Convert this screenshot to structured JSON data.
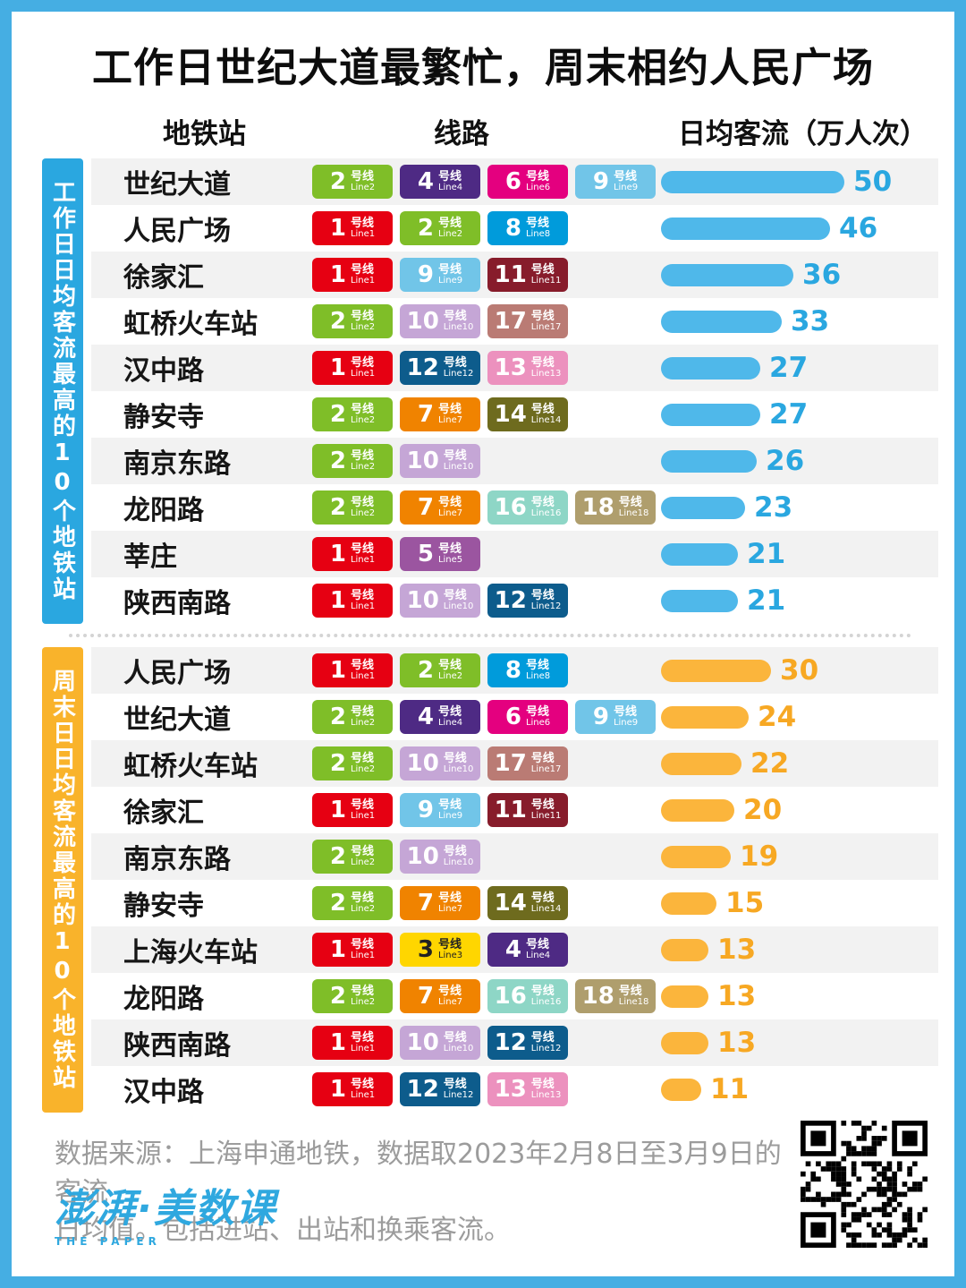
{
  "title": "工作日世纪大道最繁忙，周末相约人民广场",
  "columns": {
    "station": "地铁站",
    "lines": "线路",
    "flow": "日均客流（万人次）"
  },
  "badge": {
    "suffix_cn": "号线",
    "prefix_en": "Line"
  },
  "line_colors": {
    "1": {
      "bg": "#E60012",
      "fg": "#ffffff"
    },
    "2": {
      "bg": "#7FBE28",
      "fg": "#ffffff"
    },
    "3": {
      "bg": "#FFD600",
      "fg": "#222222"
    },
    "4": {
      "bg": "#4E2A84",
      "fg": "#ffffff"
    },
    "5": {
      "bg": "#9B55A0",
      "fg": "#ffffff"
    },
    "6": {
      "bg": "#E4007F",
      "fg": "#ffffff"
    },
    "7": {
      "bg": "#F08300",
      "fg": "#ffffff"
    },
    "8": {
      "bg": "#009BDB",
      "fg": "#ffffff"
    },
    "9": {
      "bg": "#71C5E8",
      "fg": "#ffffff"
    },
    "10": {
      "bg": "#C5A6D6",
      "fg": "#ffffff"
    },
    "11": {
      "bg": "#871C2B",
      "fg": "#ffffff"
    },
    "12": {
      "bg": "#0D5C8C",
      "fg": "#ffffff"
    },
    "13": {
      "bg": "#EC91BE",
      "fg": "#ffffff"
    },
    "14": {
      "bg": "#6E6B1E",
      "fg": "#ffffff"
    },
    "16": {
      "bg": "#8ED6C6",
      "fg": "#ffffff"
    },
    "17": {
      "bg": "#BA7B74",
      "fg": "#ffffff"
    },
    "18": {
      "bg": "#AF9E6D",
      "fg": "#ffffff"
    }
  },
  "chart_data": {
    "type": "bar",
    "orientation": "horizontal",
    "title": "工作日世纪大道最繁忙，周末相约人民广场",
    "unit_label": "日均客流（万人次）",
    "xlim": [
      0,
      50
    ],
    "grid": false,
    "groups": [
      {
        "id": "weekday",
        "label": "工作日日均客流最高的10个地铁站",
        "accent": "#2AA7E0",
        "bar_color": "#4FB8EA",
        "value_color": "#2AA7E0",
        "rows": [
          {
            "station": "世纪大道",
            "lines": [
              2,
              4,
              6,
              9
            ],
            "value": 50
          },
          {
            "station": "人民广场",
            "lines": [
              1,
              2,
              8
            ],
            "value": 46
          },
          {
            "station": "徐家汇",
            "lines": [
              1,
              9,
              11
            ],
            "value": 36
          },
          {
            "station": "虹桥火车站",
            "lines": [
              2,
              10,
              17
            ],
            "value": 33
          },
          {
            "station": "汉中路",
            "lines": [
              1,
              12,
              13
            ],
            "value": 27
          },
          {
            "station": "静安寺",
            "lines": [
              2,
              7,
              14
            ],
            "value": 27
          },
          {
            "station": "南京东路",
            "lines": [
              2,
              10
            ],
            "value": 26
          },
          {
            "station": "龙阳路",
            "lines": [
              2,
              7,
              16,
              18
            ],
            "value": 23
          },
          {
            "station": "莘庄",
            "lines": [
              1,
              5
            ],
            "value": 21
          },
          {
            "station": "陕西南路",
            "lines": [
              1,
              10,
              12
            ],
            "value": 21
          }
        ]
      },
      {
        "id": "weekend",
        "label": "周末日日均客流最高的10个地铁站",
        "accent": "#F9B32B",
        "bar_color": "#FBB53C",
        "value_color": "#F7A823",
        "rows": [
          {
            "station": "人民广场",
            "lines": [
              1,
              2,
              8
            ],
            "value": 30
          },
          {
            "station": "世纪大道",
            "lines": [
              2,
              4,
              6,
              9
            ],
            "value": 24
          },
          {
            "station": "虹桥火车站",
            "lines": [
              2,
              10,
              17
            ],
            "value": 22
          },
          {
            "station": "徐家汇",
            "lines": [
              1,
              9,
              11
            ],
            "value": 20
          },
          {
            "station": "南京东路",
            "lines": [
              2,
              10
            ],
            "value": 19
          },
          {
            "station": "静安寺",
            "lines": [
              2,
              7,
              14
            ],
            "value": 15
          },
          {
            "station": "上海火车站",
            "lines": [
              1,
              3,
              4
            ],
            "value": 13
          },
          {
            "station": "龙阳路",
            "lines": [
              2,
              7,
              16,
              18
            ],
            "value": 13
          },
          {
            "station": "陕西南路",
            "lines": [
              1,
              10,
              12
            ],
            "value": 13
          },
          {
            "station": "汉中路",
            "lines": [
              1,
              12,
              13
            ],
            "value": 11
          }
        ]
      }
    ]
  },
  "footer": {
    "line1": "数据来源：上海申通地铁，数据取2023年2月8日至3月9日的客流",
    "line2": "日均值。包括进站、出站和换乘客流。",
    "logo_text": "澎湃·美数课",
    "logo_sub": "THE PAPER"
  }
}
